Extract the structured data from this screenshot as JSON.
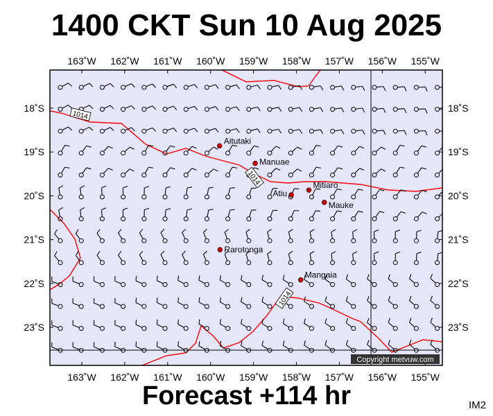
{
  "title": "1400 CKT Sun 10 Aug 2025",
  "footer": "Forecast +114 hr",
  "corner_label": "IM2",
  "copyright": "Copyright metvuw.com",
  "colors": {
    "ocean": "#e6e6fa",
    "isobar": "#ff0000",
    "marker": "#cc0000",
    "barb": "#000000"
  },
  "axes": {
    "lon_ticks": [
      "163˚W",
      "162˚W",
      "161˚W",
      "160˚W",
      "159˚W",
      "158˚W",
      "157˚W",
      "156˚W",
      "155˚W"
    ],
    "lat_ticks": [
      "18˚S",
      "19˚S",
      "20˚S",
      "21˚S",
      "22˚S",
      "23˚S"
    ],
    "lon_range": [
      -163.8,
      -154.3
    ],
    "lat_range": [
      -23.9,
      -17.4
    ]
  },
  "places": [
    {
      "name": "Aitutaki",
      "lon": -159.79,
      "lat": -18.86
    },
    {
      "name": "Manuae",
      "lon": -158.96,
      "lat": -19.26
    },
    {
      "name": "Atiu",
      "lon": -158.12,
      "lat": -19.98
    },
    {
      "name": "Mitiaro",
      "lon": -157.71,
      "lat": -19.87
    },
    {
      "name": "Mauke",
      "lon": -157.35,
      "lat": -20.15
    },
    {
      "name": "Rarotonga",
      "lon": -159.78,
      "lat": -21.23
    },
    {
      "name": "Mangaia",
      "lon": -157.9,
      "lat": -21.92
    }
  ],
  "isobar_labels": [
    "1014",
    "1014",
    "1014"
  ]
}
